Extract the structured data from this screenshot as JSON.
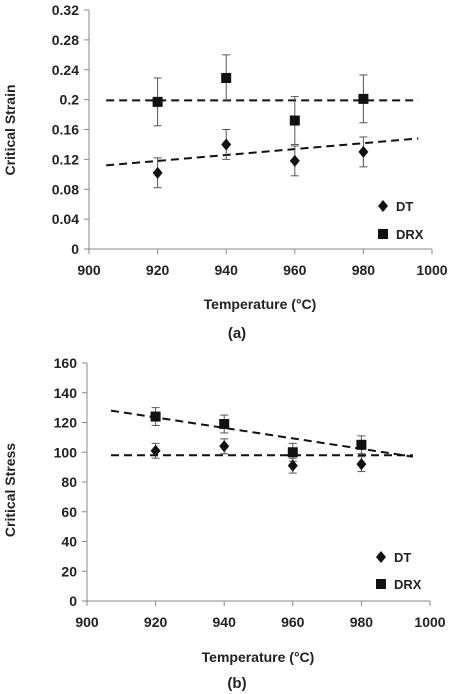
{
  "chart_data": [
    {
      "panel": "a",
      "type": "scatter",
      "caption": "(a)",
      "xlabel": "Temperature (°C)",
      "ylabel": "Critical Strain",
      "xlim": [
        900,
        1000
      ],
      "ylim": [
        0,
        0.32
      ],
      "xticks": [
        "900",
        "920",
        "940",
        "960",
        "980",
        "1000"
      ],
      "yticks": [
        "0",
        "0.04",
        "0.08",
        "0.12",
        "0.16",
        "0.2",
        "0.24",
        "0.28",
        "0.32"
      ],
      "grid": false,
      "legend_position": "bottom-right",
      "series": [
        {
          "name": "DT",
          "marker": "diamond",
          "x": [
            920,
            940,
            960,
            980
          ],
          "y": [
            0.102,
            0.14,
            0.118,
            0.13
          ],
          "error": [
            0.02,
            0.02,
            0.02,
            0.02
          ]
        },
        {
          "name": "DRX",
          "marker": "square",
          "x": [
            920,
            940,
            960,
            980
          ],
          "y": [
            0.197,
            0.229,
            0.172,
            0.201
          ],
          "error": [
            0.032,
            0.031,
            0.032,
            0.032
          ]
        }
      ],
      "trendlines": [
        {
          "x": [
            905,
            996
          ],
          "y": [
            0.112,
            0.148
          ]
        },
        {
          "x": [
            905,
            996
          ],
          "y": [
            0.199,
            0.199
          ]
        }
      ]
    },
    {
      "panel": "b",
      "type": "scatter",
      "caption": "(b)",
      "xlabel": "Temperature (°C)",
      "ylabel": "Critical Stress",
      "xlim": [
        900,
        1000
      ],
      "ylim": [
        0,
        160
      ],
      "xticks": [
        "900",
        "920",
        "940",
        "960",
        "980",
        "1000"
      ],
      "yticks": [
        "0",
        "20",
        "40",
        "60",
        "80",
        "100",
        "120",
        "140",
        "160"
      ],
      "grid": false,
      "legend_position": "bottom-right",
      "series": [
        {
          "name": "DT",
          "marker": "diamond",
          "x": [
            920,
            940,
            960,
            980
          ],
          "y": [
            101,
            104,
            91,
            92
          ],
          "error": [
            5,
            5,
            5,
            5
          ]
        },
        {
          "name": "DRX",
          "marker": "square",
          "x": [
            920,
            940,
            960,
            980
          ],
          "y": [
            124,
            119,
            100,
            105
          ],
          "error": [
            6,
            6,
            6,
            6
          ]
        }
      ],
      "trendlines": [
        {
          "x": [
            907,
            995
          ],
          "y": [
            128,
            97
          ]
        },
        {
          "x": [
            907,
            995
          ],
          "y": [
            98,
            98
          ]
        }
      ]
    }
  ]
}
